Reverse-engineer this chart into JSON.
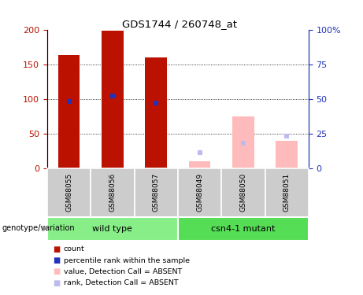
{
  "title": "GDS1744 / 260748_at",
  "samples": [
    "GSM88055",
    "GSM88056",
    "GSM88057",
    "GSM88049",
    "GSM88050",
    "GSM88051"
  ],
  "count_values": [
    163,
    198,
    160,
    0,
    0,
    0
  ],
  "rank_pct": [
    48,
    52,
    47,
    0,
    0,
    0
  ],
  "absent_value": [
    0,
    0,
    0,
    10,
    75,
    40
  ],
  "absent_rank_pct": [
    0,
    0,
    0,
    11,
    18,
    23
  ],
  "groups": [
    {
      "label": "wild type",
      "start": 0,
      "end": 3
    },
    {
      "label": "csn4-1 mutant",
      "start": 3,
      "end": 6
    }
  ],
  "ylim_left": [
    0,
    200
  ],
  "ylim_right": [
    0,
    100
  ],
  "yticks_left": [
    0,
    50,
    100,
    150,
    200
  ],
  "yticks_right": [
    0,
    25,
    50,
    75,
    100
  ],
  "ytick_labels_right": [
    "0",
    "25",
    "50",
    "75",
    "100%"
  ],
  "color_count": "#bb1100",
  "color_rank": "#2233bb",
  "color_absent_value": "#ffbbbb",
  "color_absent_rank": "#bbbbee",
  "bar_width": 0.5,
  "legend_items": [
    {
      "color": "#bb1100",
      "label": "count"
    },
    {
      "color": "#2233bb",
      "label": "percentile rank within the sample"
    },
    {
      "color": "#ffbbbb",
      "label": "value, Detection Call = ABSENT"
    },
    {
      "color": "#bbbbee",
      "label": "rank, Detection Call = ABSENT"
    }
  ],
  "xlabel_group": "genotype/variation",
  "group_color_wt": "#88ee88",
  "group_color_mut": "#55dd55"
}
